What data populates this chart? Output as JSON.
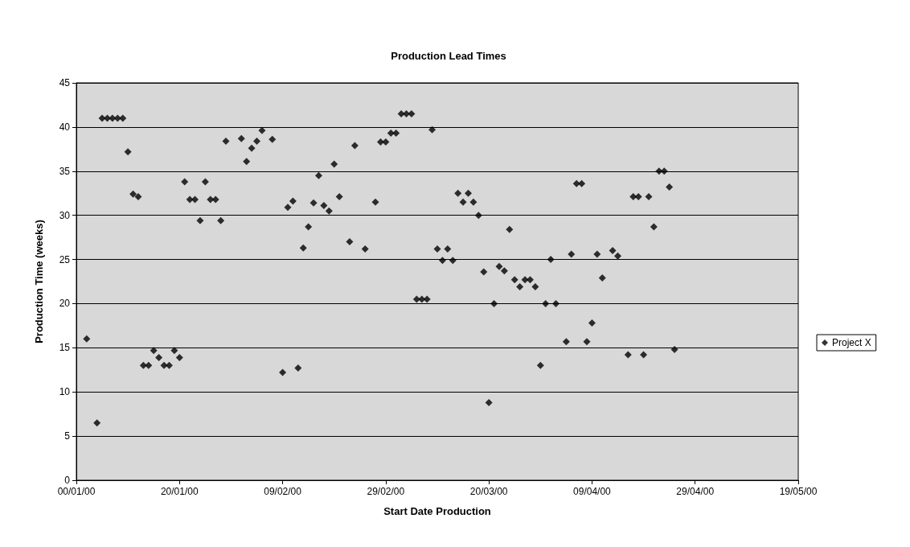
{
  "chart_data": {
    "type": "scatter",
    "title": "Production Lead Times",
    "xlabel": "Start Date Production",
    "ylabel": "Production Time (weeks)",
    "series": [
      {
        "name": "Project X",
        "color": "#000000",
        "x": [
          "2000-01-02",
          "2000-01-04",
          "2000-01-05",
          "2000-01-06",
          "2000-01-07",
          "2000-01-08",
          "2000-01-09",
          "2000-01-10",
          "2000-01-11",
          "2000-01-12",
          "2000-01-13",
          "2000-01-14",
          "2000-01-15",
          "2000-01-16",
          "2000-01-17",
          "2000-01-18",
          "2000-01-19",
          "2000-01-20",
          "2000-01-21",
          "2000-01-22",
          "2000-01-23",
          "2000-01-24",
          "2000-01-25",
          "2000-01-26",
          "2000-01-27",
          "2000-01-28",
          "2000-01-29",
          "2000-02-01",
          "2000-02-02",
          "2000-02-03",
          "2000-02-04",
          "2000-02-05",
          "2000-02-07",
          "2000-02-09",
          "2000-02-10",
          "2000-02-11",
          "2000-02-12",
          "2000-02-13",
          "2000-02-14",
          "2000-02-15",
          "2000-02-16",
          "2000-02-17",
          "2000-02-18",
          "2000-02-19",
          "2000-02-20",
          "2000-02-22",
          "2000-02-23",
          "2000-02-25",
          "2000-02-27",
          "2000-02-28",
          "2000-02-29",
          "2000-03-01",
          "2000-03-02",
          "2000-03-03",
          "2000-03-04",
          "2000-03-05",
          "2000-03-06",
          "2000-03-07",
          "2000-03-08",
          "2000-03-09",
          "2000-03-10",
          "2000-03-11",
          "2000-03-12",
          "2000-03-13",
          "2000-03-14",
          "2000-03-15",
          "2000-03-16",
          "2000-03-17",
          "2000-03-18",
          "2000-03-19",
          "2000-03-20",
          "2000-03-21",
          "2000-03-22",
          "2000-03-23",
          "2000-03-24",
          "2000-03-25",
          "2000-03-26",
          "2000-03-27",
          "2000-03-28",
          "2000-03-29",
          "2000-03-30",
          "2000-03-31",
          "2000-04-01",
          "2000-04-02",
          "2000-04-04",
          "2000-04-05",
          "2000-04-06",
          "2000-04-07",
          "2000-04-08",
          "2000-04-09",
          "2000-04-10",
          "2000-04-11",
          "2000-04-13",
          "2000-04-14",
          "2000-04-16",
          "2000-04-17",
          "2000-04-18",
          "2000-04-19",
          "2000-04-20",
          "2000-04-21",
          "2000-04-22",
          "2000-04-23",
          "2000-04-24",
          "2000-04-25"
        ],
        "values": [
          16.0,
          6.5,
          41,
          41,
          41,
          41,
          41,
          37.2,
          32.4,
          32.1,
          13.0,
          13.0,
          14.7,
          13.9,
          13.0,
          13.0,
          14.7,
          13.9,
          33.8,
          31.8,
          31.8,
          29.4,
          33.8,
          31.8,
          31.8,
          29.4,
          38.4,
          38.7,
          36.1,
          37.6,
          38.4,
          39.6,
          38.6,
          12.2,
          30.9,
          31.6,
          12.7,
          26.3,
          28.7,
          31.4,
          34.5,
          31.1,
          30.5,
          35.8,
          32.1,
          27.0,
          37.9,
          26.2,
          31.5,
          38.3,
          38.3,
          39.3,
          39.3,
          41.5,
          41.5,
          41.5,
          20.5,
          20.5,
          20.5,
          39.7,
          26.2,
          24.9,
          26.2,
          24.9,
          32.5,
          31.5,
          32.5,
          31.5,
          30.0,
          23.6,
          8.8,
          20.0,
          24.2,
          23.7,
          28.4,
          22.7,
          21.9,
          22.7,
          22.7,
          21.9,
          13.0,
          20.0,
          25.0,
          20.0,
          15.7,
          25.6,
          33.6,
          33.6,
          15.7,
          17.8,
          25.6,
          22.9,
          26.0,
          25.4,
          14.2,
          32.1,
          32.1,
          14.2,
          32.1,
          28.7,
          35.0,
          35.0,
          33.2,
          14.8
        ]
      }
    ],
    "xlim": [
      "1999-12-31",
      "2000-05-19"
    ],
    "xticks": [
      {
        "value": "1999-12-31",
        "label": "00/01/00"
      },
      {
        "value": "2000-01-20",
        "label": "20/01/00"
      },
      {
        "value": "2000-02-09",
        "label": "09/02/00"
      },
      {
        "value": "2000-02-29",
        "label": "29/02/00"
      },
      {
        "value": "2000-03-20",
        "label": "20/03/00"
      },
      {
        "value": "2000-04-09",
        "label": "09/04/00"
      },
      {
        "value": "2000-04-29",
        "label": "29/04/00"
      },
      {
        "value": "2000-05-19",
        "label": "19/05/00"
      }
    ],
    "ylim": [
      0,
      45
    ],
    "yticks": [
      0,
      5,
      10,
      15,
      20,
      25,
      30,
      35,
      40,
      45
    ],
    "grid": "y",
    "legend": "right",
    "marker": "diamond"
  }
}
